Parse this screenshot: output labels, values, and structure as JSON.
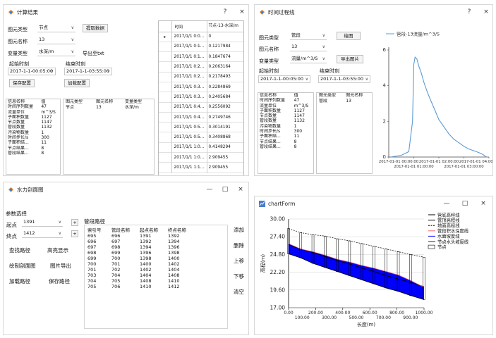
{
  "calc_window": {
    "title": "计算结果",
    "help": "?",
    "close": "×",
    "type_label": "图元类型",
    "type_value": "节点",
    "fetch_button": "提取数据",
    "name_label": "图元名称",
    "name_value": "13",
    "var_label": "变量类型",
    "var_value": "水深/m",
    "export_button": "导出至txt",
    "start_label": "起始时刻",
    "start_value": "2017-1-1-00:05:00",
    "end_label": "结束时刻",
    "end_value": "2017-1-1-03:55:00",
    "save_config": "保存配置",
    "load_config": "加载配置",
    "info_header": [
      "信息名称",
      "值"
    ],
    "info_rows": [
      [
        "时间序列数量",
        "47"
      ],
      [
        "流量单位",
        "m^3/S"
      ],
      [
        "子面积数量",
        "1127"
      ],
      [
        "节点数量",
        "1147"
      ],
      [
        "管段数量",
        "1132"
      ],
      [
        "污染物数量",
        "1"
      ],
      [
        "时间步长/s",
        "300"
      ],
      [
        "子面积结...",
        "11"
      ],
      [
        "节点结果...",
        "8"
      ],
      [
        "管段结果...",
        "8"
      ]
    ],
    "sel_header": [
      "图元类型",
      "图元名称",
      "变量类型"
    ],
    "sel_row": [
      "节点",
      "13",
      "水深/m"
    ],
    "grid_header": [
      "时间",
      "节点-13-水深/m"
    ],
    "grid_rows": [
      [
        "2017/1/1 0:0...",
        "0"
      ],
      [
        "2017/1/1 0:1...",
        "0.1217984"
      ],
      [
        "2017/1/1 0:1...",
        "0.1847674"
      ],
      [
        "2017/1/1 0:2...",
        "0.2063164"
      ],
      [
        "2017/1/1 0:2...",
        "0.2178493"
      ],
      [
        "2017/1/1 0:3...",
        "0.2284869"
      ],
      [
        "2017/1/1 0:3...",
        "0.2405684"
      ],
      [
        "2017/1/1 0:4...",
        "0.2556092"
      ],
      [
        "2017/1/1 0:4...",
        "0.2749746"
      ],
      [
        "2017/1/1 0:5...",
        "0.3014191"
      ],
      [
        "2017/1/1 0:5...",
        "0.3408868"
      ],
      [
        "2017/1/1 1:0...",
        "0.4148294"
      ],
      [
        "2017/1/1 1:0...",
        "2.909455"
      ],
      [
        "2017/1/1 1:1...",
        "2.909455"
      ]
    ]
  },
  "time_window": {
    "title": "时间过程线",
    "help": "?",
    "close": "×",
    "type_label": "图元类型",
    "type_value": "管段",
    "draw_button": "绘图",
    "name_label": "图元名称",
    "name_value": "13",
    "var_label": "变量类型",
    "var_value": "流量/m^3/S",
    "export_button": "导出图片",
    "start_label": "起始时刻",
    "start_value": "2017-1-1-00:05:00",
    "end_label": "结束时刻",
    "end_value": "2017-1-1-03:55:00",
    "info_header": [
      "信息名称",
      "值"
    ],
    "info_rows": [
      [
        "时间序列数量",
        "47"
      ],
      [
        "流量单位",
        "m^3/S"
      ],
      [
        "子面积数量",
        "1127"
      ],
      [
        "节点数量",
        "1147"
      ],
      [
        "管段数量",
        "1132"
      ],
      [
        "污染物数量",
        "1"
      ],
      [
        "时间步长/s",
        "300"
      ],
      [
        "子面积结...",
        "11"
      ],
      [
        "节点结果...",
        "8"
      ],
      [
        "管段结果...",
        "8"
      ]
    ],
    "sel_header": [
      "图元类型",
      "图元名称"
    ],
    "sel_row": [
      "管段",
      "13"
    ]
  },
  "chart_data": [
    {
      "type": "line",
      "legend": "管段-13流量/m^3/S",
      "legend_position": "top",
      "ylim": [
        0,
        6
      ],
      "yticks": [
        "0",
        "2",
        "4",
        "6"
      ],
      "xticks_top": [
        "2017-01-01 00:00:00",
        "2017-01-01 02:00:00",
        "2017-01-01 04:00:00"
      ],
      "xticks_bottom": [
        "2017-01-01 01:00:00",
        "2017-01-01 03:00:00"
      ],
      "x_hours": [
        0.083,
        0.5,
        0.8,
        0.95,
        1.0,
        1.05,
        1.12,
        1.2,
        1.3,
        1.4,
        1.55,
        1.7,
        1.85,
        2.0,
        2.2,
        2.4,
        2.6,
        2.8,
        3.0,
        3.2,
        3.4,
        3.6,
        3.75,
        3.9
      ],
      "values": [
        0,
        0.1,
        0.3,
        2.0,
        5.2,
        5.6,
        5.5,
        5.1,
        4.7,
        4.2,
        3.6,
        3.1,
        2.6,
        2.1,
        1.7,
        1.3,
        1.0,
        0.8,
        0.6,
        0.45,
        0.35,
        0.25,
        0.15,
        0.0
      ],
      "color": "#5b9bd5"
    },
    {
      "type": "line",
      "title": "",
      "xlabel": "长度(m)",
      "ylabel": "高程(m)",
      "xlim": [
        0,
        1000
      ],
      "ylim": [
        17,
        30
      ],
      "xticks_top": [
        "0.00",
        "200.00",
        "400.00",
        "600.00",
        "800.00",
        "1000.00"
      ],
      "xticks_bottom": [
        "100.00",
        "300.00",
        "500.00",
        "700.00",
        "900.00"
      ],
      "yticks": [
        "17.00",
        "19.60",
        "22.20",
        "24.80",
        "27.40",
        "30.00"
      ],
      "legend": [
        "管底高程线",
        "管顶高程线",
        "地面高程线",
        "管段积水深度线",
        "水面坡度线",
        "节点水头坡度线",
        "节点"
      ],
      "nodes_x": [
        0,
        90,
        180,
        270,
        360,
        450,
        540,
        630,
        720,
        810,
        900,
        1000
      ],
      "ground": [
        28.6,
        28.0,
        27.7,
        27.5,
        27.1,
        26.8,
        26.4,
        26.0,
        25.6,
        25.2,
        24.8,
        24.4
      ],
      "pipe_top": [
        26.2,
        25.6,
        25.1,
        24.5,
        23.9,
        23.4,
        22.8,
        22.3,
        21.7,
        21.2,
        20.7,
        20.1
      ],
      "pipe_bottom": [
        24.9,
        24.3,
        23.5,
        22.9,
        22.3,
        21.7,
        21.1,
        20.5,
        19.9,
        19.4,
        18.8,
        18.2
      ],
      "water": [
        26.4,
        25.6,
        25.2,
        24.7,
        24.1,
        23.7,
        23.2,
        22.8,
        22.3,
        21.8,
        21.0,
        20.0
      ],
      "colors": {
        "pipe": "#000000",
        "water_fill": "#0000ff",
        "ground": "#000000",
        "head": "#ff6666"
      }
    }
  ],
  "hydro_window": {
    "title": "水力剖面图",
    "min": "—",
    "max": "□",
    "close": "×",
    "params_label": "参数选择",
    "start_label": "起点",
    "start_value": "1391",
    "end_label": "终点",
    "end_value": "1412",
    "plus": "+",
    "path_label": "管段路径",
    "btn_find": "查找路径",
    "btn_highlight": "高亮显示",
    "btn_draw": "绘制剖面图",
    "btn_export": "图片导出",
    "btn_load": "加载路径",
    "btn_save": "保存路径",
    "table_header": [
      "索引号",
      "管段名称",
      "起点名称",
      "终点名称"
    ],
    "table_rows": [
      [
        "695",
        "696",
        "1391",
        "1392"
      ],
      [
        "696",
        "697",
        "1392",
        "1394"
      ],
      [
        "697",
        "698",
        "1394",
        "1396"
      ],
      [
        "698",
        "699",
        "1396",
        "1398"
      ],
      [
        "699",
        "700",
        "1398",
        "1400"
      ],
      [
        "700",
        "701",
        "1400",
        "1402"
      ],
      [
        "701",
        "702",
        "1402",
        "1404"
      ],
      [
        "703",
        "704",
        "1404",
        "1408"
      ],
      [
        "704",
        "705",
        "1408",
        "1410"
      ],
      [
        "705",
        "706",
        "1410",
        "1412"
      ]
    ],
    "side_buttons": [
      "添加",
      "删除",
      "上移",
      "下移",
      "清空"
    ]
  },
  "chart_window": {
    "title": "chartForm",
    "min": "—",
    "max": "□",
    "close": "×"
  }
}
